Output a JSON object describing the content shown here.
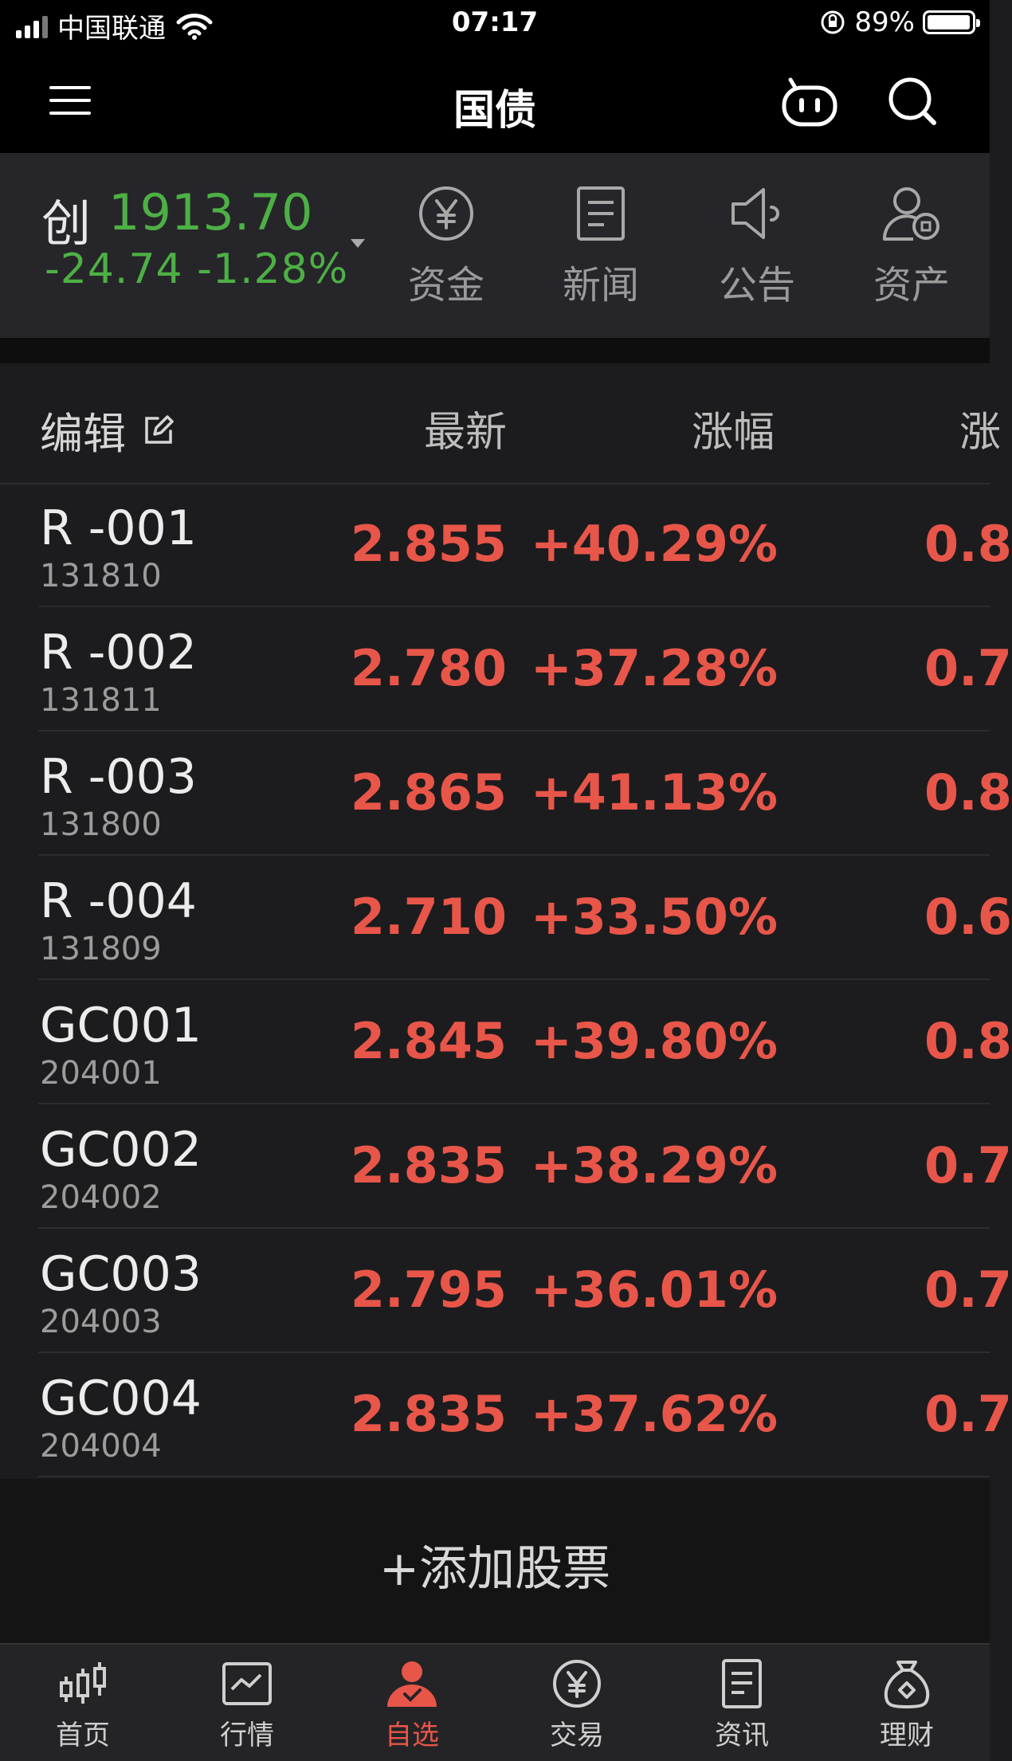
{
  "status_bar": {
    "carrier": "中国联通",
    "time": "07:17",
    "battery": "89%"
  },
  "navbar": {
    "title": "国债",
    "icons": [
      "menu-icon",
      "robot-icon",
      "search-icon"
    ]
  },
  "index": {
    "name": "创",
    "value": "1913.70",
    "change": "-24.74 -1.28%",
    "quick_buttons": [
      {
        "label": "资金",
        "icon": "yuan-circle-icon"
      },
      {
        "label": "新闻",
        "icon": "document-icon"
      },
      {
        "label": "公告",
        "icon": "speaker-icon"
      },
      {
        "label": "资产",
        "icon": "user-assets-icon"
      }
    ]
  },
  "table": {
    "edit_label": "编辑",
    "columns": [
      "最新",
      "涨幅",
      "涨"
    ],
    "rows": [
      {
        "name": "R -001",
        "code": "131810",
        "price": "2.855",
        "pct": "+40.29%",
        "chg": "0.8"
      },
      {
        "name": "R -002",
        "code": "131811",
        "price": "2.780",
        "pct": "+37.28%",
        "chg": "0.7"
      },
      {
        "name": "R -003",
        "code": "131800",
        "price": "2.865",
        "pct": "+41.13%",
        "chg": "0.8"
      },
      {
        "name": "R -004",
        "code": "131809",
        "price": "2.710",
        "pct": "+33.50%",
        "chg": "0.6"
      },
      {
        "name": "GC001",
        "code": "204001",
        "price": "2.845",
        "pct": "+39.80%",
        "chg": "0.8"
      },
      {
        "name": "GC002",
        "code": "204002",
        "price": "2.835",
        "pct": "+38.29%",
        "chg": "0.7"
      },
      {
        "name": "GC003",
        "code": "204003",
        "price": "2.795",
        "pct": "+36.01%",
        "chg": "0.7"
      },
      {
        "name": "GC004",
        "code": "204004",
        "price": "2.835",
        "pct": "+37.62%",
        "chg": "0.7"
      }
    ]
  },
  "add_stock_label": "+添加股票",
  "tabbar": [
    {
      "label": "首页",
      "icon": "candlestick-icon"
    },
    {
      "label": "行情",
      "icon": "chart-icon"
    },
    {
      "label": "自选",
      "icon": "user-check-icon",
      "active": true
    },
    {
      "label": "交易",
      "icon": "yuan-circle-icon"
    },
    {
      "label": "资讯",
      "icon": "document-icon"
    },
    {
      "label": "理财",
      "icon": "money-bag-icon"
    }
  ],
  "colors": {
    "up": "#e8564a",
    "down": "#4db045",
    "background": "#1c1c1e"
  }
}
